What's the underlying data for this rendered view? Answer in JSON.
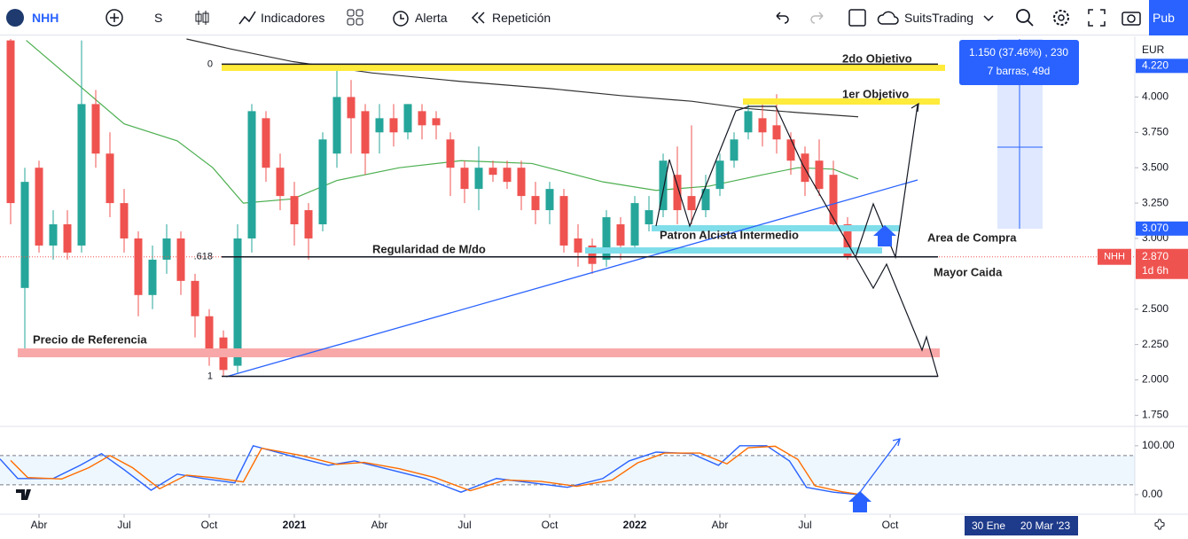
{
  "toolbar": {
    "symbol": "NHH",
    "interval": "S",
    "indicators": "Indicadores",
    "alert": "Alerta",
    "replay": "Repetición",
    "layout": "SuitsTrading",
    "publish": "Pub"
  },
  "range_badges": [
    "30 Ene",
    "20 Mar '23"
  ],
  "chart_data": [
    {
      "type": "candlestick",
      "currency": "EUR",
      "ylim": [
        1.69,
        4.41
      ],
      "yticks": [
        {
          "value": 4,
          "label": "4.000"
        },
        {
          "value": 3.75,
          "label": "3.750"
        },
        {
          "value": 3.5,
          "label": "3.500"
        },
        {
          "value": 3.25,
          "label": "3.250"
        },
        {
          "value": 3,
          "label": "3.000"
        },
        {
          "value": 2.5,
          "label": "2.500"
        },
        {
          "value": 2.25,
          "label": "2.250"
        },
        {
          "value": 2,
          "label": "2.000"
        },
        {
          "value": 1.75,
          "label": "1.750"
        }
      ],
      "xlim": [
        -0.75,
        79.25
      ],
      "xticks": [
        {
          "value": 2,
          "label": "Abr"
        },
        {
          "value": 8,
          "label": "Jul"
        },
        {
          "value": 14,
          "label": "Oct"
        },
        {
          "value": 20,
          "label": "2021"
        },
        {
          "value": 26,
          "label": "Abr"
        },
        {
          "value": 32,
          "label": "Jul"
        },
        {
          "value": 38,
          "label": "Oct"
        },
        {
          "value": 44,
          "label": "2022"
        },
        {
          "value": 50,
          "label": "Abr"
        },
        {
          "value": 56,
          "label": "Jul"
        },
        {
          "value": 62,
          "label": "Oct"
        }
      ],
      "up_color": "#26a69a",
      "down_color": "#ef5350",
      "open": [
        4.4,
        2.65,
        3.5,
        2.95,
        3.1,
        2.95,
        3.95,
        3.6,
        3.25,
        3.0,
        2.6,
        2.85,
        3.0,
        2.7,
        2.45,
        2.3,
        2.1,
        3.0,
        3.85,
        3.5,
        3.3,
        3.2,
        3.1,
        3.6,
        4.0,
        3.9,
        3.75,
        3.85,
        3.75,
        3.9,
        3.85,
        3.7,
        3.5,
        3.35,
        3.5,
        3.5,
        3.5,
        3.3,
        3.2,
        3.3,
        3.0,
        2.95,
        2.85,
        3.1,
        2.95,
        3.1,
        3.2,
        3.45,
        3.3,
        3.2,
        3.35,
        3.55,
        3.75,
        3.85,
        3.8,
        3.7,
        3.6,
        3.55,
        3.45,
        3.1
      ],
      "high": [
        4.41,
        3.5,
        3.55,
        3.2,
        3.2,
        4.4,
        4.05,
        3.75,
        3.35,
        3.05,
        2.95,
        3.1,
        3.05,
        2.75,
        2.5,
        2.35,
        3.1,
        3.95,
        3.9,
        3.6,
        3.4,
        3.25,
        3.75,
        4.2,
        4.12,
        3.95,
        3.95,
        3.95,
        3.95,
        3.95,
        3.9,
        3.75,
        3.55,
        3.65,
        3.55,
        3.55,
        3.55,
        3.4,
        3.4,
        3.35,
        3.1,
        3.0,
        3.2,
        3.15,
        3.3,
        3.3,
        3.6,
        3.65,
        3.8,
        3.45,
        3.6,
        3.75,
        3.95,
        3.95,
        4.02,
        3.75,
        3.65,
        3.7,
        3.55,
        3.15
      ],
      "low": [
        3.1,
        2.2,
        2.9,
        2.85,
        2.85,
        2.9,
        3.5,
        3.15,
        2.9,
        2.45,
        2.5,
        2.75,
        2.6,
        2.3,
        2.1,
        2.03,
        2.05,
        2.9,
        3.4,
        3.2,
        2.95,
        2.85,
        3.05,
        3.5,
        3.6,
        3.45,
        3.6,
        3.65,
        3.7,
        3.7,
        3.7,
        3.3,
        3.25,
        3.2,
        3.4,
        3.35,
        3.2,
        3.1,
        3.1,
        2.9,
        2.8,
        2.75,
        2.8,
        2.85,
        2.9,
        3.05,
        3.15,
        3.1,
        3.1,
        3.15,
        3.3,
        3.5,
        3.7,
        3.65,
        3.6,
        3.45,
        3.3,
        3.3,
        3.05,
        2.85
      ],
      "close": [
        3.25,
        3.4,
        2.95,
        3.1,
        2.9,
        3.95,
        3.6,
        3.25,
        3.0,
        2.6,
        2.85,
        3.0,
        2.7,
        2.45,
        2.2,
        2.07,
        3.0,
        3.9,
        3.5,
        3.3,
        3.1,
        3.0,
        3.7,
        4.0,
        3.85,
        3.6,
        3.85,
        3.75,
        3.95,
        3.8,
        3.8,
        3.5,
        3.35,
        3.5,
        3.45,
        3.4,
        3.3,
        3.2,
        3.35,
        2.95,
        2.9,
        2.82,
        3.15,
        2.95,
        3.25,
        3.2,
        3.55,
        3.2,
        3.2,
        3.35,
        3.55,
        3.7,
        3.9,
        3.75,
        3.7,
        3.55,
        3.4,
        3.35,
        3.1,
        2.87
      ],
      "lines": [
        {
          "color": "#4caf50",
          "x": [
            1.1,
            8,
            11.75,
            14.25,
            16.4,
            19.9,
            23,
            27.4,
            31.75,
            36.75,
            41.75,
            45.5,
            49.25,
            53,
            55.5,
            58,
            59.75
          ],
          "values": [
            4.4,
            3.81,
            3.69,
            3.5,
            3.25,
            3.28,
            3.41,
            3.5,
            3.55,
            3.53,
            3.4,
            3.34,
            3.37,
            3.45,
            3.5,
            3.49,
            3.42
          ]
        },
        {
          "color": "#333333",
          "x": [
            12.4,
            15.5,
            19.9,
            25.5,
            31.75,
            38,
            43,
            48,
            51.75,
            55.5,
            59.75
          ],
          "values": [
            4.41,
            4.34,
            4.25,
            4.17,
            4.11,
            4.06,
            4.01,
            3.97,
            3.92,
            3.89,
            3.86
          ]
        }
      ],
      "last_price": {
        "symbol": "NHH",
        "value": 2.87,
        "label": "2.870",
        "countdown": "1d 6h"
      },
      "price_labels": [
        {
          "value": 4.22,
          "label": "4.220"
        },
        {
          "value": 3.07,
          "label": "3.070"
        }
      ],
      "measure": {
        "text": "1.150 (37.46%) , 230",
        "bars": "7 barras, 49d"
      },
      "fib_levels": [
        {
          "value": 4.232,
          "label": "0"
        },
        {
          "value": 2.87,
          "label": ".618"
        },
        {
          "value": 2.025,
          "label": "1"
        }
      ],
      "annotations": {
        "target_2": "2do Objetivo",
        "target_1": "1er Objetivo",
        "pattern": "Patron Alcista Intermedio",
        "buy_area": "Area de Compra",
        "regularity": "Regularidad de M/do",
        "drop": "Mayor Caida",
        "reference": "Precio de Referencia"
      }
    },
    {
      "type": "line",
      "ylim": [
        -40,
        136
      ],
      "xlim": [
        -0.75,
        79.25
      ],
      "yticks": [
        {
          "value": 100,
          "label": "100.00"
        },
        {
          "value": 0,
          "label": "0.00"
        }
      ],
      "bands": [
        20,
        80
      ],
      "series": [
        {
          "color": "#2962ff",
          "x": [
            -0.75,
            0.5,
            3,
            4.9,
            6.4,
            8,
            9.9,
            11.75,
            13.6,
            15.8,
            17.1,
            19.9,
            22.4,
            24.25,
            26.75,
            29.25,
            31.75,
            34.25,
            36.75,
            39.25,
            41.75,
            43.6,
            45.5,
            48,
            49.9,
            51.4,
            53.3,
            54.9,
            56.1,
            58,
            59.75
          ],
          "values": [
            73,
            33,
            33,
            60,
            84,
            51,
            9,
            42,
            33,
            24,
            100,
            78,
            60,
            69,
            51,
            33,
            5,
            33,
            24,
            15,
            33,
            69,
            87,
            84,
            60,
            100,
            100,
            69,
            15,
            5,
            0
          ]
        },
        {
          "color": "#ff6d00",
          "x": [
            0,
            1.2,
            3.6,
            5.5,
            7,
            8.6,
            10.5,
            12.4,
            14.2,
            16.4,
            17.7,
            20.5,
            23,
            24.9,
            27.4,
            29.9,
            32.4,
            34.9,
            37.4,
            39.9,
            42.4,
            44.2,
            46.1,
            48.6,
            50.5,
            52,
            53.9,
            55.5,
            56.7,
            58.6,
            59.75
          ],
          "values": [
            70,
            35,
            32,
            55,
            80,
            55,
            12,
            40,
            35,
            26,
            95,
            80,
            62,
            66,
            53,
            35,
            8,
            30,
            27,
            17,
            30,
            65,
            85,
            85,
            63,
            96,
            99,
            72,
            18,
            6,
            1
          ]
        }
      ]
    }
  ]
}
